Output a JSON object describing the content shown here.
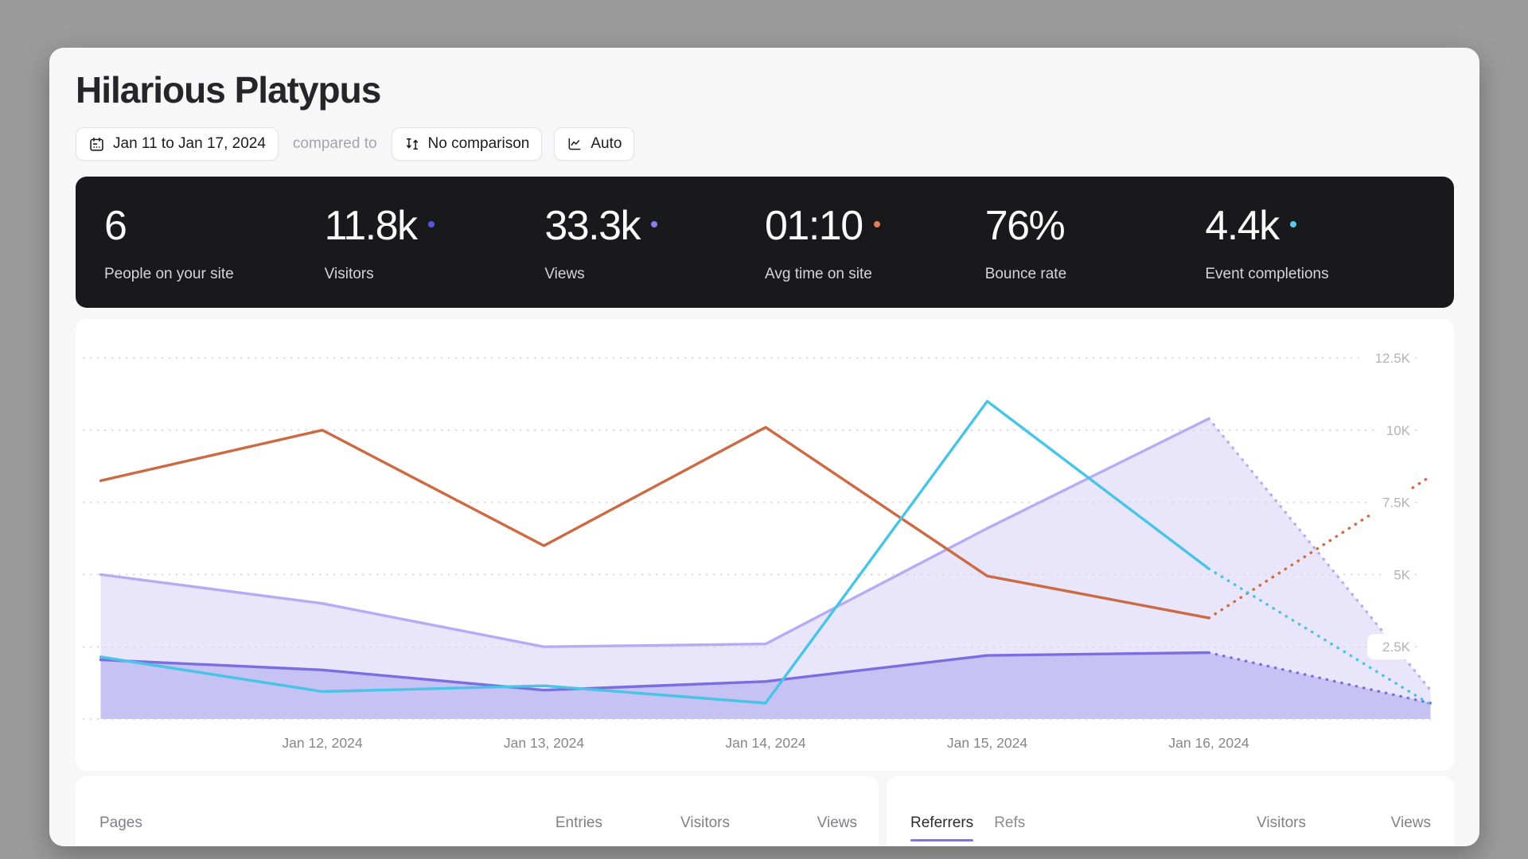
{
  "page": {
    "title": "Hilarious Platypus"
  },
  "toolbar": {
    "date_range": "Jan 11 to Jan 17, 2024",
    "compared_to_label": "compared to",
    "comparison": "No comparison",
    "interval": "Auto"
  },
  "stats": [
    {
      "value": "6",
      "label": "People on your site",
      "dot": null
    },
    {
      "value": "11.8k",
      "label": "Visitors",
      "dot": "#5753e4"
    },
    {
      "value": "33.3k",
      "label": "Views",
      "dot": "#8a7df0"
    },
    {
      "value": "01:10",
      "label": "Avg time on site",
      "dot": "#dd7e55"
    },
    {
      "value": "76%",
      "label": "Bounce rate",
      "dot": null
    },
    {
      "value": "4.4k",
      "label": "Event completions",
      "dot": "#5ec8ea"
    }
  ],
  "chart_data": {
    "type": "line",
    "x": [
      "Jan 11, 2024",
      "Jan 12, 2024",
      "Jan 13, 2024",
      "Jan 14, 2024",
      "Jan 15, 2024",
      "Jan 16, 2024",
      "Jan 17, 2024"
    ],
    "x_tick_labels": [
      "Jan 12, 2024",
      "Jan 13, 2024",
      "Jan 14, 2024",
      "Jan 15, 2024",
      "Jan 16, 2024"
    ],
    "y_ticks": [
      2500,
      5000,
      7500,
      10000,
      12500
    ],
    "y_tick_labels": [
      "2.5K",
      "5K",
      "7.5K",
      "10K",
      "12.5K"
    ],
    "ylim": [
      0,
      12500
    ],
    "grid": "dotted-horizontal",
    "legend_position": "none",
    "dashed_after_index": 5,
    "series": [
      {
        "name": "Views",
        "color": "#b7acf4",
        "fill": "rgba(183,172,244,0.30)",
        "area": true,
        "values": [
          5000,
          4000,
          2500,
          2600,
          6600,
          10400,
          1000
        ]
      },
      {
        "name": "Visitors",
        "color": "#7b6ee0",
        "fill": "rgba(124,111,224,0.30)",
        "area": true,
        "values": [
          2050,
          1700,
          1000,
          1300,
          2200,
          2300,
          550
        ]
      },
      {
        "name": "Avg time on site",
        "color": "#cc6a44",
        "fill": null,
        "area": false,
        "values": [
          8250,
          10000,
          6000,
          10100,
          4950,
          3500,
          8400
        ]
      },
      {
        "name": "Event completions",
        "color": "#47c4e6",
        "fill": null,
        "area": false,
        "values": [
          2150,
          950,
          1150,
          550,
          11000,
          5200,
          500
        ]
      }
    ]
  },
  "pages_card": {
    "title": "Pages",
    "columns": [
      "Entries",
      "Visitors",
      "Views"
    ]
  },
  "referrers_card": {
    "tabs": [
      {
        "label": "Referrers",
        "active": true
      },
      {
        "label": "Refs",
        "active": false
      }
    ],
    "columns": [
      "Visitors",
      "Views"
    ]
  },
  "theme": {
    "outer_background": "#9b9b9b",
    "page_background": "#f7f7f8",
    "stats_bar_background": "#19191c",
    "card_background": "#ffffff",
    "gridline_color": "#d6d6da",
    "x_label_color": "#86868b",
    "y_label_color": "#b3b3b8",
    "active_tab_underline": "#8171ea"
  }
}
